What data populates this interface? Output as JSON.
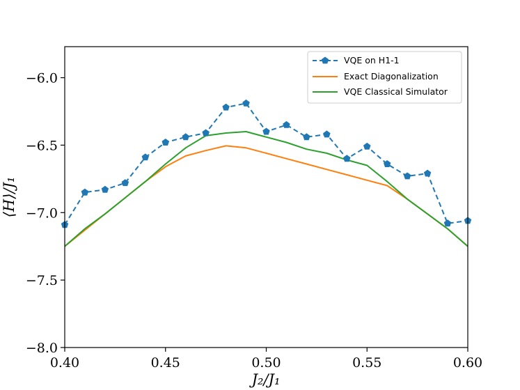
{
  "chart_data": {
    "type": "line",
    "title": "",
    "xlabel": "J₂/J₁",
    "ylabel": "⟨H⟩/J₁",
    "xlim": [
      0.4,
      0.6
    ],
    "ylim": [
      -8.0,
      -5.77
    ],
    "grid": false,
    "legend_position": "top-right",
    "x_ticks": [
      {
        "value": 0.4,
        "label": "0.40"
      },
      {
        "value": 0.45,
        "label": "0.45"
      },
      {
        "value": 0.5,
        "label": "0.50"
      },
      {
        "value": 0.55,
        "label": "0.55"
      },
      {
        "value": 0.6,
        "label": "0.60"
      }
    ],
    "y_ticks": [
      {
        "value": -6.0,
        "label": "−6.0"
      },
      {
        "value": -6.5,
        "label": "−6.5"
      },
      {
        "value": -7.0,
        "label": "−7.0"
      },
      {
        "value": -7.5,
        "label": "−7.5"
      },
      {
        "value": -8.0,
        "label": "−8.0"
      }
    ],
    "series": [
      {
        "name": "VQE on H1-1",
        "color": "#1f77b4",
        "style": "dashed",
        "marker": "pentagon",
        "x": [
          0.4,
          0.41,
          0.42,
          0.43,
          0.44,
          0.45,
          0.46,
          0.47,
          0.48,
          0.49,
          0.5,
          0.51,
          0.52,
          0.53,
          0.54,
          0.55,
          0.56,
          0.57,
          0.58,
          0.59,
          0.6
        ],
        "y": [
          -7.09,
          -6.85,
          -6.83,
          -6.78,
          -6.59,
          -6.48,
          -6.44,
          -6.41,
          -6.22,
          -6.19,
          -6.4,
          -6.35,
          -6.44,
          -6.42,
          -6.6,
          -6.51,
          -6.64,
          -6.73,
          -6.71,
          -7.08,
          -7.06
        ]
      },
      {
        "name": "Exact Diagonalization",
        "color": "#ff7f0e",
        "style": "solid",
        "marker": "none",
        "x": [
          0.4,
          0.41,
          0.42,
          0.43,
          0.44,
          0.45,
          0.46,
          0.47,
          0.48,
          0.49,
          0.5,
          0.51,
          0.52,
          0.53,
          0.54,
          0.55,
          0.56,
          0.57,
          0.58,
          0.59,
          0.6
        ],
        "y": [
          -7.25,
          -7.13,
          -7.01,
          -6.89,
          -6.77,
          -6.66,
          -6.58,
          -6.54,
          -6.505,
          -6.52,
          -6.56,
          -6.6,
          -6.64,
          -6.68,
          -6.72,
          -6.76,
          -6.8,
          -6.9,
          -7.01,
          -7.12,
          -7.25
        ]
      },
      {
        "name": "VQE Classical Simulator",
        "color": "#2ca02c",
        "style": "solid",
        "marker": "none",
        "x": [
          0.4,
          0.41,
          0.42,
          0.43,
          0.44,
          0.45,
          0.46,
          0.47,
          0.48,
          0.49,
          0.5,
          0.51,
          0.52,
          0.53,
          0.54,
          0.55,
          0.56,
          0.57,
          0.58,
          0.59,
          0.6
        ],
        "y": [
          -7.25,
          -7.12,
          -7.01,
          -6.89,
          -6.77,
          -6.64,
          -6.52,
          -6.43,
          -6.41,
          -6.4,
          -6.44,
          -6.48,
          -6.53,
          -6.56,
          -6.61,
          -6.65,
          -6.77,
          -6.9,
          -7.01,
          -7.12,
          -7.25
        ]
      }
    ]
  }
}
